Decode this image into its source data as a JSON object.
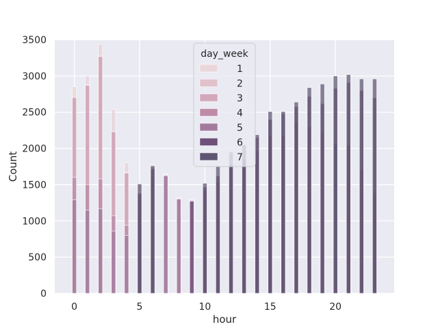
{
  "chart_data": {
    "type": "bar",
    "stacked": true,
    "xlabel": "hour",
    "ylabel": "Count",
    "xlim": [
      -1.5,
      24.5
    ],
    "ylim": [
      0,
      3500
    ],
    "xticks": [
      0,
      5,
      10,
      15,
      20
    ],
    "yticks": [
      0,
      500,
      1000,
      1500,
      2000,
      2500,
      3000,
      3500
    ],
    "grid": true,
    "legend": {
      "title": "day_week",
      "placement": "top-center"
    },
    "series": [
      {
        "name": "1",
        "color": "#ebd7da",
        "values": [
          1180,
          1020,
          1050,
          880,
          830,
          1250,
          1300,
          1050,
          940,
          1050,
          1170,
          1460,
          1700,
          1830,
          1960,
          2160,
          2160,
          2360,
          2300,
          2190,
          2060,
          2050,
          1700,
          1400
        ]
      },
      {
        "name": "2",
        "color": "#e1c2ca",
        "values": [
          100,
          120,
          120,
          60,
          50,
          60,
          60,
          0,
          0,
          0,
          0,
          0,
          0,
          0,
          0,
          0,
          0,
          0,
          0,
          0,
          0,
          0,
          0,
          0
        ]
      },
      {
        "name": "3",
        "color": "#d3a8ba",
        "values": [
          310,
          360,
          400,
          130,
          60,
          80,
          330,
          590,
          360,
          250,
          200,
          70,
          40,
          30,
          30,
          30,
          40,
          60,
          40,
          60,
          80,
          60,
          160,
          130
        ]
      },
      {
        "name": "4",
        "color": "#bf8aa8",
        "values": [
          0,
          0,
          0,
          0,
          0,
          0,
          0,
          0,
          0,
          0,
          0,
          0,
          0,
          0,
          0,
          0,
          0,
          0,
          0,
          0,
          0,
          0,
          0,
          0
        ]
      },
      {
        "name": "5",
        "color": "#a37b9d",
        "values": [
          0,
          0,
          0,
          0,
          0,
          0,
          0,
          0,
          0,
          0,
          0,
          0,
          0,
          0,
          0,
          0,
          0,
          0,
          0,
          0,
          0,
          0,
          0,
          0
        ]
      },
      {
        "name": "6",
        "color": "#6f5079",
        "values": [
          0,
          0,
          0,
          0,
          0,
          0,
          0,
          0,
          0,
          0,
          0,
          0,
          0,
          0,
          0,
          0,
          0,
          0,
          0,
          0,
          0,
          0,
          0,
          0
        ]
      },
      {
        "name": "7",
        "color": "#5f5573",
        "values": [
          0,
          0,
          0,
          0,
          0,
          0,
          0,
          0,
          0,
          0,
          0,
          0,
          0,
          0,
          0,
          0,
          0,
          0,
          0,
          0,
          0,
          0,
          0,
          0
        ]
      }
    ],
    "layers": [
      {
        "name": "1",
        "color": "#e6d2d6",
        "values": [
          2850,
          3000,
          3440,
          2540,
          1800,
          1500,
          1780,
          1650,
          1320,
          1290,
          1450,
          1580,
          1770,
          1880,
          1990,
          2200,
          2210,
          2410,
          2330,
          2250,
          2100,
          2070,
          1740,
          1420
        ]
      },
      {
        "name": "2",
        "color": "#dcbcc5",
        "values": [
          2720,
          2880,
          3280,
          2240,
          1670,
          1400,
          1750,
          1640,
          1320,
          1290,
          1440,
          1560,
          1750,
          1870,
          1980,
          2190,
          2200,
          2390,
          2320,
          2240,
          2090,
          2060,
          1720,
          1410
        ]
      },
      {
        "name": "3",
        "color": "#cda0b4",
        "values": [
          2700,
          2870,
          3270,
          2230,
          1660,
          1390,
          1740,
          1640,
          1310,
          1290,
          1430,
          1560,
          1740,
          1870,
          1980,
          2180,
          2190,
          2380,
          2310,
          2230,
          2080,
          2050,
          1710,
          1400
        ]
      },
      {
        "name": "4",
        "color": "#b98aa7",
        "values": [
          1600,
          1500,
          1580,
          1070,
          940,
          1360,
          1680,
          1630,
          1310,
          1290,
          1420,
          1550,
          1740,
          1860,
          1970,
          2180,
          2190,
          2370,
          2310,
          2230,
          2080,
          2050,
          1710,
          1400
        ]
      },
      {
        "name": "5",
        "color": "#a07c9e",
        "values": [
          1290,
          1150,
          1170,
          860,
          800,
          1300,
          1620,
          1620,
          1300,
          1280,
          1400,
          1540,
          1730,
          1850,
          1960,
          2170,
          2180,
          2360,
          2300,
          2210,
          2070,
          2040,
          1700,
          1390
        ]
      },
      {
        "name": "6",
        "color": "#6c4f7a",
        "values": [
          0,
          0,
          0,
          0,
          0,
          1380,
          1720,
          0,
          0,
          1270,
          1470,
          1620,
          1780,
          1860,
          2150,
          2400,
          2480,
          2580,
          2720,
          2620,
          2830,
          2910,
          2800,
          2700
        ]
      },
      {
        "name": "7",
        "color": "#5e5670",
        "values": [
          0,
          0,
          0,
          0,
          0,
          1510,
          1760,
          0,
          0,
          0,
          1520,
          1750,
          1950,
          2050,
          2190,
          2510,
          2510,
          2640,
          2840,
          2890,
          3000,
          3020,
          2960,
          2960
        ]
      }
    ]
  }
}
